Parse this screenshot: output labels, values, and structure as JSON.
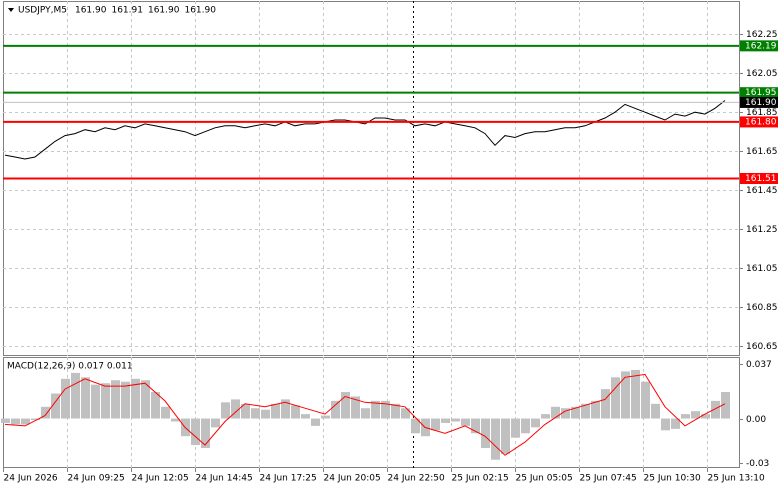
{
  "chart_data": [
    {
      "type": "line",
      "title": "USDJPY,M5",
      "ohlc_labels": [
        "161.90",
        "161.91",
        "161.90",
        "161.90"
      ],
      "series": [
        {
          "color": "#000000",
          "values": [
            161.63,
            161.62,
            161.61,
            161.62,
            161.66,
            161.7,
            161.73,
            161.74,
            161.76,
            161.75,
            161.77,
            161.76,
            161.78,
            161.77,
            161.79,
            161.78,
            161.77,
            161.76,
            161.75,
            161.73,
            161.75,
            161.77,
            161.78,
            161.78,
            161.77,
            161.78,
            161.79,
            161.78,
            161.8,
            161.78,
            161.79,
            161.79,
            161.8,
            161.81,
            161.81,
            161.8,
            161.79,
            161.82,
            161.82,
            161.81,
            161.81,
            161.78,
            161.79,
            161.78,
            161.8,
            161.79,
            161.78,
            161.77,
            161.74,
            161.68,
            161.73,
            161.72,
            161.74,
            161.75,
            161.75,
            161.76,
            161.77,
            161.77,
            161.78,
            161.8,
            161.82,
            161.85,
            161.89,
            161.87,
            161.85,
            161.83,
            161.81,
            161.84,
            161.83,
            161.85,
            161.84,
            161.87,
            161.91
          ]
        }
      ],
      "ylim": [
        160.6,
        162.42
      ],
      "yticks": [
        162.25,
        162.05,
        161.85,
        161.65,
        161.45,
        161.25,
        161.05,
        160.85,
        160.65
      ],
      "grid": true,
      "levels": [
        {
          "value": 162.19,
          "label": "162.19",
          "color": "#008000"
        },
        {
          "value": 161.95,
          "label": "161.95",
          "color": "#008000"
        },
        {
          "value": 161.8,
          "label": "161.80",
          "color": "#ff0000"
        },
        {
          "value": 161.51,
          "label": "161.51",
          "color": "#ff0000"
        }
      ],
      "current_price": {
        "value": 161.9,
        "label": "161.90"
      }
    },
    {
      "type": "macd",
      "title": "MACD(12,26,9) 0.017 0.011",
      "series": [
        {
          "color": "#c0c0c0",
          "values": [
            -0.003,
            -0.004,
            -0.004,
            -0.001,
            0.008,
            0.017,
            0.027,
            0.031,
            0.028,
            0.023,
            0.024,
            0.026,
            0.025,
            0.027,
            0.026,
            0.018,
            0.008,
            -0.002,
            -0.012,
            -0.018,
            -0.02,
            -0.006,
            0.011,
            0.013,
            0.01,
            0.007,
            0.006,
            0.01,
            0.013,
            0.009,
            0.003,
            -0.005,
            0.002,
            0.012,
            0.018,
            0.015,
            0.007,
            0.012,
            0.012,
            0.01,
            0.007,
            -0.01,
            -0.012,
            -0.008,
            -0.003,
            -0.002,
            -0.005,
            -0.01,
            -0.02,
            -0.028,
            -0.024,
            -0.013,
            -0.01,
            -0.006,
            0.003,
            0.008,
            0.007,
            0.008,
            0.01,
            0.012,
            0.02,
            0.028,
            0.032,
            0.033,
            0.025,
            0.01,
            -0.008,
            -0.007,
            0.003,
            0.005,
            0.003,
            0.012,
            0.018
          ]
        },
        {
          "color": "#ff0000",
          "values": [
            -0.004,
            -0.005,
            0.002,
            0.02,
            0.027,
            0.022,
            0.022,
            0.024,
            0.012,
            -0.006,
            -0.018,
            -0.002,
            0.01,
            0.008,
            0.011,
            0.007,
            0.003,
            0.015,
            0.011,
            0.01,
            0.008,
            -0.006,
            -0.01,
            -0.005,
            -0.012,
            -0.025,
            -0.016,
            -0.004,
            0.005,
            0.009,
            0.013,
            0.028,
            0.03,
            0.008,
            -0.005,
            0.003,
            0.01
          ]
        }
      ],
      "ylim": [
        -0.0336,
        0.0418
      ],
      "yticks": [
        0.037,
        {
          "value": 0,
          "label": "0.00"
        },
        -0.03
      ],
      "x_tick_labels": [
        "24 Jun 2026",
        "24 Jun 09:25",
        "24 Jun 12:05",
        "24 Jun 14:45",
        "24 Jun 17:25",
        "24 Jun 20:05",
        "24 Jun 22:50",
        "25 Jun 02:15",
        "25 Jun 05:05",
        "25 Jun 07:45",
        "25 Jun 10:30",
        "25 Jun 13:10"
      ]
    }
  ]
}
